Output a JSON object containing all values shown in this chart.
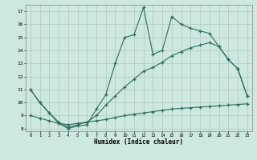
{
  "xlabel": "Humidex (Indice chaleur)",
  "bg_color": "#cce8e0",
  "grid_color": "#b0c8c0",
  "line_color": "#2e6b5e",
  "line1_x": [
    0,
    1,
    2,
    3,
    4,
    5,
    6,
    7,
    8,
    9,
    10,
    11,
    12,
    13,
    14,
    15,
    16,
    17,
    18,
    19,
    20,
    21,
    22,
    23
  ],
  "line1_y": [
    11.0,
    10.0,
    9.2,
    8.4,
    8.0,
    8.2,
    8.3,
    9.5,
    10.6,
    13.0,
    15.0,
    15.2,
    17.3,
    13.7,
    14.0,
    16.6,
    16.0,
    15.7,
    15.5,
    15.3,
    14.3,
    13.3,
    12.6,
    10.5
  ],
  "line2_x": [
    0,
    1,
    2,
    3,
    4,
    5,
    6,
    7,
    8,
    9,
    10,
    11,
    12,
    13,
    14,
    15,
    16,
    17,
    18,
    19,
    20,
    21,
    22,
    23
  ],
  "line2_y": [
    11.0,
    10.0,
    9.2,
    8.5,
    8.1,
    8.3,
    8.5,
    9.0,
    9.8,
    10.5,
    11.2,
    11.8,
    12.4,
    12.7,
    13.1,
    13.6,
    13.9,
    14.2,
    14.4,
    14.6,
    14.3,
    13.3,
    12.6,
    10.5
  ],
  "line3_x": [
    0,
    1,
    2,
    3,
    4,
    5,
    6,
    7,
    8,
    9,
    10,
    11,
    12,
    13,
    14,
    15,
    16,
    17,
    18,
    19,
    20,
    21,
    22,
    23
  ],
  "line3_y": [
    9.0,
    8.8,
    8.6,
    8.4,
    8.3,
    8.4,
    8.5,
    8.6,
    8.7,
    8.85,
    9.0,
    9.1,
    9.2,
    9.3,
    9.4,
    9.5,
    9.55,
    9.6,
    9.65,
    9.7,
    9.75,
    9.8,
    9.85,
    9.9
  ],
  "ylim": [
    7.8,
    17.5
  ],
  "xlim": [
    -0.5,
    23.5
  ],
  "yticks": [
    8,
    9,
    10,
    11,
    12,
    13,
    14,
    15,
    16,
    17
  ],
  "xticks": [
    0,
    1,
    2,
    3,
    4,
    5,
    6,
    7,
    8,
    9,
    10,
    11,
    12,
    13,
    14,
    15,
    16,
    17,
    18,
    19,
    20,
    21,
    22,
    23
  ]
}
